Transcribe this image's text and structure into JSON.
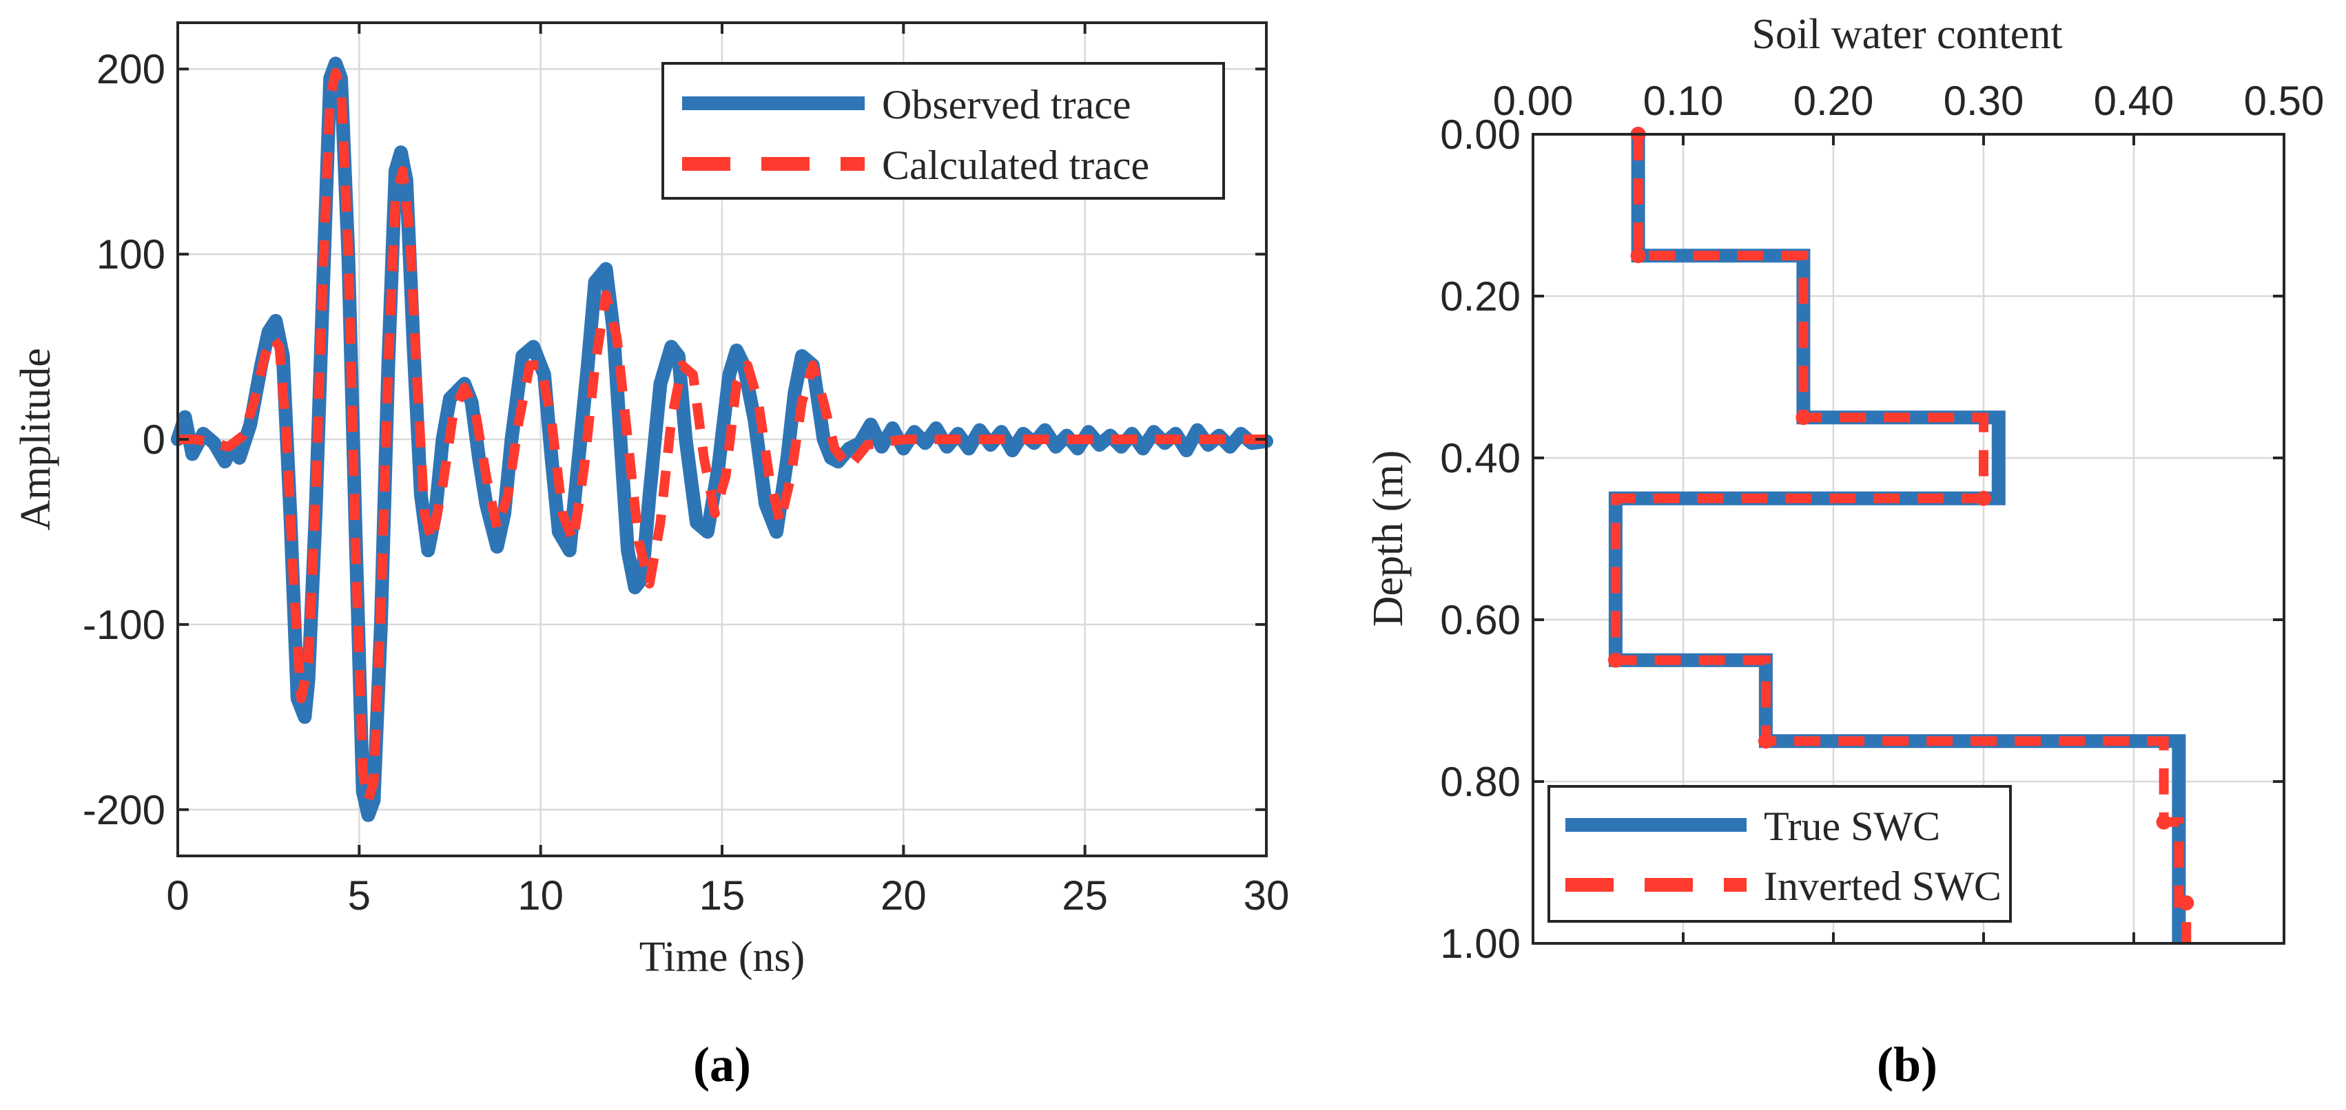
{
  "chart_data": [
    {
      "type": "line",
      "panel_label": "(a)",
      "xlabel": "Time (ns)",
      "ylabel": "Amplitude",
      "xlim": [
        0,
        30
      ],
      "ylim": [
        -225,
        225
      ],
      "x_ticks": [
        "0",
        "5",
        "10",
        "15",
        "20",
        "25",
        "30"
      ],
      "y_ticks": [
        "200",
        "100",
        "0",
        "-100",
        "-200"
      ],
      "grid": true,
      "legend_position": "top-right",
      "series": [
        {
          "name": "Observed trace",
          "style": "solid",
          "color": "#2e75b6",
          "x": [
            0,
            0.2,
            0.4,
            0.7,
            1.0,
            1.3,
            1.5,
            1.7,
            2.0,
            2.3,
            2.5,
            2.7,
            2.9,
            3.1,
            3.3,
            3.5,
            3.6,
            3.8,
            4.0,
            4.2,
            4.35,
            4.5,
            4.7,
            4.9,
            5.1,
            5.25,
            5.4,
            5.6,
            5.8,
            6.0,
            6.15,
            6.3,
            6.5,
            6.7,
            6.9,
            7.1,
            7.3,
            7.5,
            7.7,
            7.9,
            8.1,
            8.3,
            8.5,
            8.8,
            9.0,
            9.2,
            9.5,
            9.8,
            10.1,
            10.3,
            10.5,
            10.8,
            11.0,
            11.3,
            11.5,
            11.8,
            12.0,
            12.2,
            12.4,
            12.6,
            12.8,
            13.0,
            13.3,
            13.6,
            13.8,
            14.0,
            14.3,
            14.6,
            14.9,
            15.2,
            15.4,
            15.6,
            15.9,
            16.2,
            16.5,
            16.8,
            17.0,
            17.2,
            17.5,
            17.8,
            18.0,
            18.2,
            18.5,
            18.8,
            19.1,
            19.4,
            19.7,
            20.0,
            20.3,
            20.6,
            20.9,
            21.2,
            21.5,
            21.8,
            22.1,
            22.4,
            22.7,
            23.0,
            23.3,
            23.6,
            23.9,
            24.2,
            24.5,
            24.8,
            25.1,
            25.4,
            25.7,
            26.0,
            26.3,
            26.6,
            26.9,
            27.2,
            27.5,
            27.8,
            28.1,
            28.4,
            28.7,
            29.0,
            29.3,
            29.6,
            30.0
          ],
          "y": [
            0,
            12,
            -8,
            3,
            -2,
            -12,
            -4,
            -10,
            8,
            40,
            58,
            64,
            45,
            -40,
            -140,
            -150,
            -130,
            -40,
            80,
            195,
            203,
            195,
            100,
            -50,
            -190,
            -203,
            -195,
            -100,
            40,
            145,
            155,
            140,
            50,
            -30,
            -60,
            -40,
            0,
            22,
            26,
            30,
            20,
            -10,
            -35,
            -58,
            -40,
            0,
            45,
            50,
            35,
            -10,
            -50,
            -60,
            -20,
            40,
            85,
            92,
            60,
            0,
            -60,
            -80,
            -75,
            -30,
            30,
            50,
            45,
            0,
            -45,
            -50,
            -15,
            35,
            48,
            40,
            10,
            -35,
            -50,
            -10,
            25,
            45,
            40,
            0,
            -10,
            -12,
            -5,
            -2,
            8,
            -4,
            6,
            -5,
            4,
            -2,
            6,
            -4,
            3,
            -5,
            5,
            -3,
            4,
            -6,
            3,
            -2,
            5,
            -4,
            2,
            -5,
            4,
            -3,
            2,
            -4,
            3,
            -5,
            4,
            -2,
            3,
            -6,
            5,
            -3,
            2,
            -4,
            3,
            -2,
            -1
          ]
        },
        {
          "name": "Calculated trace",
          "style": "dashed",
          "color": "#ff3b30",
          "x": [
            0,
            0.5,
            1.0,
            1.4,
            1.8,
            2.1,
            2.4,
            2.6,
            2.8,
            3.0,
            3.2,
            3.4,
            3.6,
            3.8,
            4.0,
            4.2,
            4.35,
            4.5,
            4.7,
            4.9,
            5.1,
            5.25,
            5.4,
            5.6,
            5.8,
            6.0,
            6.2,
            6.4,
            6.6,
            6.8,
            7.0,
            7.3,
            7.6,
            7.9,
            8.2,
            8.5,
            8.8,
            9.1,
            9.4,
            9.7,
            10.0,
            10.3,
            10.6,
            10.9,
            11.2,
            11.5,
            11.8,
            12.1,
            12.4,
            12.7,
            13.0,
            13.3,
            13.6,
            13.9,
            14.2,
            14.5,
            14.8,
            15.1,
            15.4,
            15.7,
            16.0,
            16.3,
            16.6,
            16.9,
            17.2,
            17.5,
            17.8,
            18.1,
            18.5,
            19.0,
            20.0,
            21.0,
            22.0,
            23.0,
            24.0,
            25.0,
            26.0,
            27.0,
            28.0,
            29.0,
            30.0
          ],
          "y": [
            0,
            0,
            -2,
            -4,
            2,
            20,
            45,
            55,
            50,
            0,
            -80,
            -140,
            -120,
            -30,
            90,
            185,
            198,
            190,
            100,
            -60,
            -180,
            -195,
            -185,
            -90,
            40,
            130,
            145,
            110,
            30,
            -40,
            -55,
            -25,
            15,
            28,
            15,
            -20,
            -48,
            -30,
            10,
            40,
            40,
            10,
            -40,
            -55,
            -15,
            40,
            78,
            55,
            0,
            -55,
            -78,
            -45,
            10,
            40,
            35,
            -10,
            -40,
            -20,
            30,
            40,
            20,
            -20,
            -45,
            -20,
            20,
            40,
            20,
            -5,
            -15,
            -3,
            0,
            0,
            0,
            0,
            0,
            0,
            0,
            0,
            0,
            0,
            0
          ]
        }
      ]
    },
    {
      "type": "line",
      "panel_label": "(b)",
      "xlabel": "Soil water content",
      "ylabel": "Depth (m)",
      "xlim": [
        0,
        0.5
      ],
      "ylim": [
        0,
        1.0
      ],
      "x_ticks": [
        "0.00",
        "0.10",
        "0.20",
        "0.30",
        "0.40",
        "0.50"
      ],
      "y_ticks": [
        "0.00",
        "0.20",
        "0.40",
        "0.60",
        "0.80",
        "1.00"
      ],
      "x_axis_position": "top",
      "y_axis_inverted": true,
      "grid": true,
      "legend_position": "bottom-left",
      "series": [
        {
          "name": "True SWC",
          "style": "solid",
          "color": "#2e75b6",
          "swc": [
            0.07,
            0.07,
            0.18,
            0.18,
            0.31,
            0.31,
            0.055,
            0.055,
            0.155,
            0.155,
            0.43,
            0.43
          ],
          "depth": [
            0,
            0.15,
            0.15,
            0.35,
            0.35,
            0.45,
            0.45,
            0.65,
            0.65,
            0.75,
            0.75,
            1.0
          ]
        },
        {
          "name": "Inverted SWC",
          "style": "dashed",
          "color": "#ff3b30",
          "swc": [
            0.07,
            0.07,
            0.18,
            0.18,
            0.3,
            0.3,
            0.055,
            0.055,
            0.155,
            0.155,
            0.42,
            0.42,
            0.43,
            0.43,
            0.435,
            0.435
          ],
          "depth": [
            0,
            0.15,
            0.15,
            0.35,
            0.35,
            0.45,
            0.45,
            0.65,
            0.65,
            0.75,
            0.75,
            0.85,
            0.85,
            0.95,
            0.95,
            1.0
          ],
          "markers": [
            [
              0.07,
              0
            ],
            [
              0.07,
              0.15
            ],
            [
              0.18,
              0.35
            ],
            [
              0.3,
              0.45
            ],
            [
              0.055,
              0.65
            ],
            [
              0.155,
              0.75
            ],
            [
              0.42,
              0.85
            ],
            [
              0.435,
              0.95
            ]
          ]
        }
      ]
    }
  ]
}
